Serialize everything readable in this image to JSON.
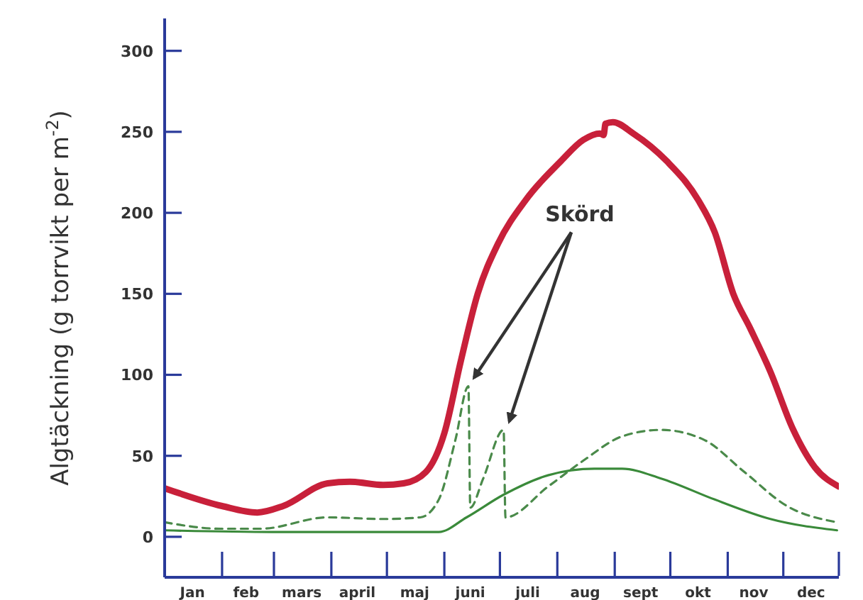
{
  "chart_data": {
    "type": "line",
    "ylabel": "Algtäckning (g torrvikt per m$^{-2}$)",
    "annotations": [
      "Skörd"
    ],
    "xlim": [
      "--01-01",
      "--12-31"
    ],
    "xticks": [
      {
        "value": "--01-16",
        "label": "Jan"
      },
      {
        "value": "--02-14",
        "label": "feb"
      },
      {
        "value": "--03-16",
        "label": "mars"
      },
      {
        "value": "--04-15",
        "label": "april"
      },
      {
        "value": "--05-16",
        "label": "maj"
      },
      {
        "value": "--06-15",
        "label": "juni"
      },
      {
        "value": "--07-16",
        "label": "juli"
      },
      {
        "value": "--08-16",
        "label": "aug"
      },
      {
        "value": "--09-15",
        "label": "sept"
      },
      {
        "value": "--10-16",
        "label": "okt"
      },
      {
        "value": "--11-15",
        "label": "nov"
      },
      {
        "value": "--12-16",
        "label": "dec"
      }
    ],
    "ylim": [
      -25,
      320
    ],
    "yticks": [
      0,
      50,
      100,
      150,
      200,
      250,
      300
    ],
    "marker": "none",
    "series": [
      {
        "color": "#c8203a",
        "x": [
          "--01-01",
          "--02-01",
          "--02-20",
          "--03-06",
          "--03-30",
          "--04-11",
          "--04-29",
          "--05-10",
          "--05-22",
          "--06-01",
          "--06-10",
          "--06-19",
          "--06-30",
          "--07-15",
          "--08-03",
          "--08-15",
          "--08-24",
          "--08-26",
          "--08-27",
          "--08-31",
          "--09-11",
          "--09-29",
          "--10-16",
          "--10-25",
          "--11-04",
          "--11-13",
          "--11-24",
          "--12-06",
          "--12-18",
          "--12-31"
        ],
        "values": [
          30,
          19,
          15,
          19,
          33,
          34,
          32,
          33,
          40,
          64,
          109,
          150,
          181,
          208,
          232,
          245,
          249,
          248,
          255,
          256,
          249,
          232,
          208,
          188,
          150,
          129,
          102,
          67,
          43,
          31
        ]
      },
      {
        "color": "#3a8a3a",
        "x": [
          "--01-01",
          "--02-28",
          "--05-29",
          "--06-13",
          "--07-03",
          "--07-27",
          "--08-21",
          "--09-05",
          "--09-26",
          "--10-25",
          "--11-24",
          "--12-30"
        ],
        "values": [
          4,
          3,
          3,
          12,
          26,
          38,
          42,
          42,
          36,
          23,
          11,
          4
        ]
      },
      {
        "color": "#4a8a4a",
        "line_style": "dashed",
        "x": [
          "--01-01",
          "--01-31",
          "--02-22",
          "--03-30",
          "--04-29",
          "--05-19",
          "--05-29",
          "--06-07",
          "--06-14",
          "--06-15",
          "--06-22",
          "--07-03",
          "--07-04",
          "--07-27",
          "--08-15",
          "--09-05",
          "--09-26",
          "--10-19",
          "--11-10",
          "--12-03",
          "--12-30"
        ],
        "values": [
          9,
          5,
          5,
          12,
          11,
          12,
          23,
          60,
          93,
          18,
          36,
          66,
          12,
          31,
          47,
          62,
          66,
          60,
          40,
          19,
          9
        ]
      }
    ]
  }
}
